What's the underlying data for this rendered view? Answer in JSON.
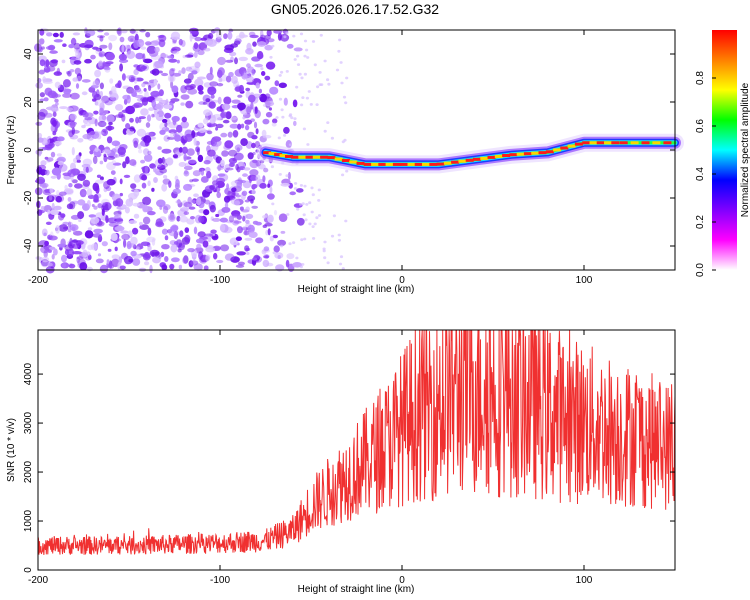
{
  "title": "GN05.2026.026.17.52.G32",
  "chart_data": [
    {
      "type": "heatmap",
      "title": "GN05.2026.026.17.52.G32",
      "xlabel": "Height of straight line (km)",
      "ylabel": "Frequency (Hz)",
      "xlim": [
        -200,
        150
      ],
      "ylim": [
        -50,
        50
      ],
      "xticks": [
        -200,
        -100,
        0,
        100
      ],
      "yticks": [
        -40,
        -20,
        0,
        20,
        40
      ],
      "noise_region_end_km": -72,
      "colorbar": {
        "label": "Normalized spectral amplitude",
        "range": [
          0.0,
          1.0
        ],
        "ticks": [
          "0.0",
          "0.2",
          "0.4",
          "0.6",
          "0.8"
        ],
        "colors": [
          "#ffffff",
          "#ff00ff",
          "#8000ff",
          "#0000ff",
          "#00ffff",
          "#00ff00",
          "#ffff00",
          "#ff8000",
          "#ff0000"
        ]
      },
      "trace": {
        "x_km": [
          -75,
          -60,
          -40,
          -20,
          0,
          20,
          40,
          60,
          80,
          100,
          120,
          150
        ],
        "freq_hz": [
          -1,
          -3,
          -3,
          -6,
          -6,
          -6,
          -4,
          -2,
          -1,
          3,
          3,
          3
        ]
      }
    },
    {
      "type": "line",
      "xlabel": "Height of straight line (km)",
      "ylabel": "SNR (10 * v/v)",
      "xlim": [
        -200,
        150
      ],
      "ylim": [
        0,
        4900
      ],
      "xticks": [
        -200,
        -100,
        0,
        100
      ],
      "yticks": [
        0,
        1000,
        2000,
        3000,
        4000
      ],
      "color": "#f03030",
      "envelope": {
        "x_km": [
          -200,
          -150,
          -100,
          -75,
          -60,
          -50,
          -40,
          -30,
          -20,
          -10,
          0,
          10,
          20,
          30,
          40,
          50,
          60,
          70,
          80,
          90,
          100,
          110,
          120,
          130,
          140,
          150
        ],
        "snr": [
          500,
          500,
          550,
          600,
          800,
          1300,
          1600,
          1900,
          2200,
          2500,
          2900,
          3300,
          3500,
          3700,
          3800,
          3800,
          3700,
          3500,
          3300,
          3100,
          3000,
          2900,
          2800,
          2700,
          2600,
          2500
        ]
      }
    }
  ]
}
